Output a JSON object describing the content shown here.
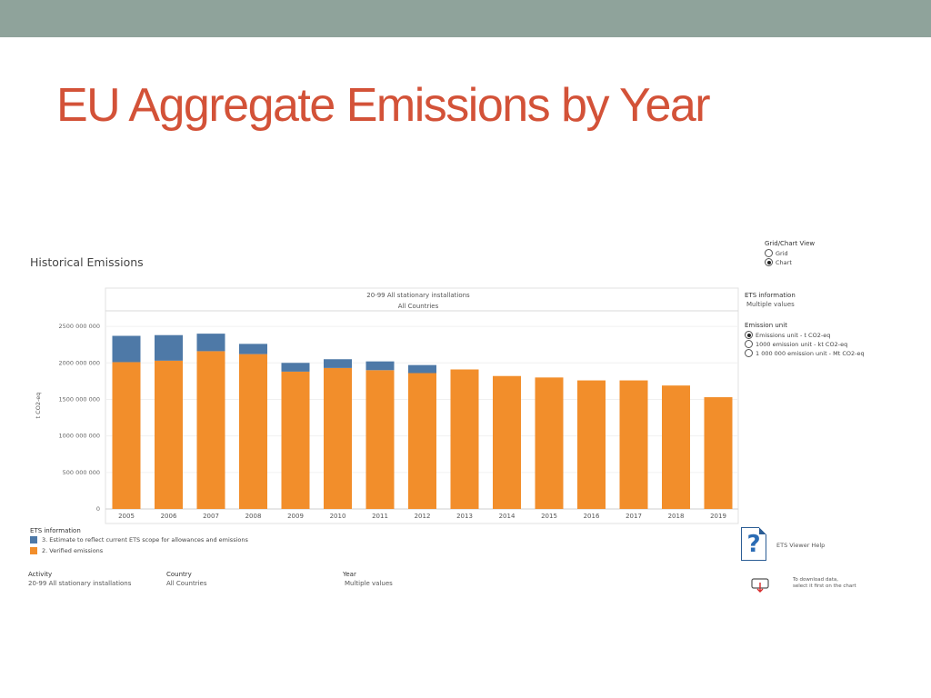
{
  "slide": {
    "title": "EU Aggregate Emissions by Year"
  },
  "dashboard": {
    "title": "Historical Emissions",
    "chart_header_line1": "20-99 All stationary installations",
    "chart_header_line2": "All Countries",
    "y_axis_label": "t CO2-eq"
  },
  "view_toggle": {
    "label": "Grid/Chart View",
    "options": [
      "Grid",
      "Chart"
    ],
    "selected": "Chart"
  },
  "ets_info_panel": {
    "label": "ETS information",
    "value": "Multiple values"
  },
  "emission_unit": {
    "label": "Emission unit",
    "options": [
      "Emissions unit - t CO2-eq",
      "1000 emission unit - kt CO2-eq",
      "1 000 000 emission unit - Mt CO2-eq"
    ],
    "selected": "Emissions unit - t CO2-eq"
  },
  "legend": {
    "title": "ETS information",
    "items": [
      {
        "label": "3. Estimate to reflect current ETS scope for allowances and emissions",
        "color": "#4e79a7"
      },
      {
        "label": "2. Verified emissions",
        "color": "#f28e2b"
      }
    ]
  },
  "filters": {
    "activity_label": "Activity",
    "activity_value": "20-99 All stationary installations",
    "country_label": "Country",
    "country_value": "All Countries",
    "year_label": "Year",
    "year_value": "Multiple values"
  },
  "help": {
    "label": "ETS Viewer Help",
    "icon": "question-document-icon"
  },
  "download": {
    "line1": "To download data,",
    "line2": "select it first on the chart",
    "icon": "download-icon"
  },
  "chart_data": {
    "type": "bar",
    "stacked": true,
    "title": "Historical Emissions",
    "subtitle": "20-99 All stationary installations / All Countries",
    "xlabel": "",
    "ylabel": "t CO2-eq",
    "ylim": [
      0,
      2700000000
    ],
    "yticks": [
      0,
      500000000,
      1000000000,
      1500000000,
      2000000000,
      2500000000
    ],
    "ytick_labels": [
      "0",
      "500 000 000",
      "1000 000 000",
      "1500 000 000",
      "2000 000 000",
      "2500 000 000"
    ],
    "categories": [
      "2005",
      "2006",
      "2007",
      "2008",
      "2009",
      "2010",
      "2011",
      "2012",
      "2013",
      "2014",
      "2015",
      "2016",
      "2017",
      "2018",
      "2019"
    ],
    "series": [
      {
        "name": "2. Verified emissions",
        "color": "#f28e2b",
        "values": [
          2010000000,
          2030000000,
          2160000000,
          2120000000,
          1880000000,
          1930000000,
          1900000000,
          1860000000,
          1910000000,
          1820000000,
          1800000000,
          1760000000,
          1760000000,
          1690000000,
          1530000000
        ]
      },
      {
        "name": "3. Estimate to reflect current ETS scope for allowances and emissions",
        "color": "#4e79a7",
        "values": [
          360000000,
          350000000,
          240000000,
          140000000,
          120000000,
          120000000,
          120000000,
          110000000,
          0,
          0,
          0,
          0,
          0,
          0,
          0
        ]
      }
    ],
    "legend_position": "bottom-left"
  }
}
